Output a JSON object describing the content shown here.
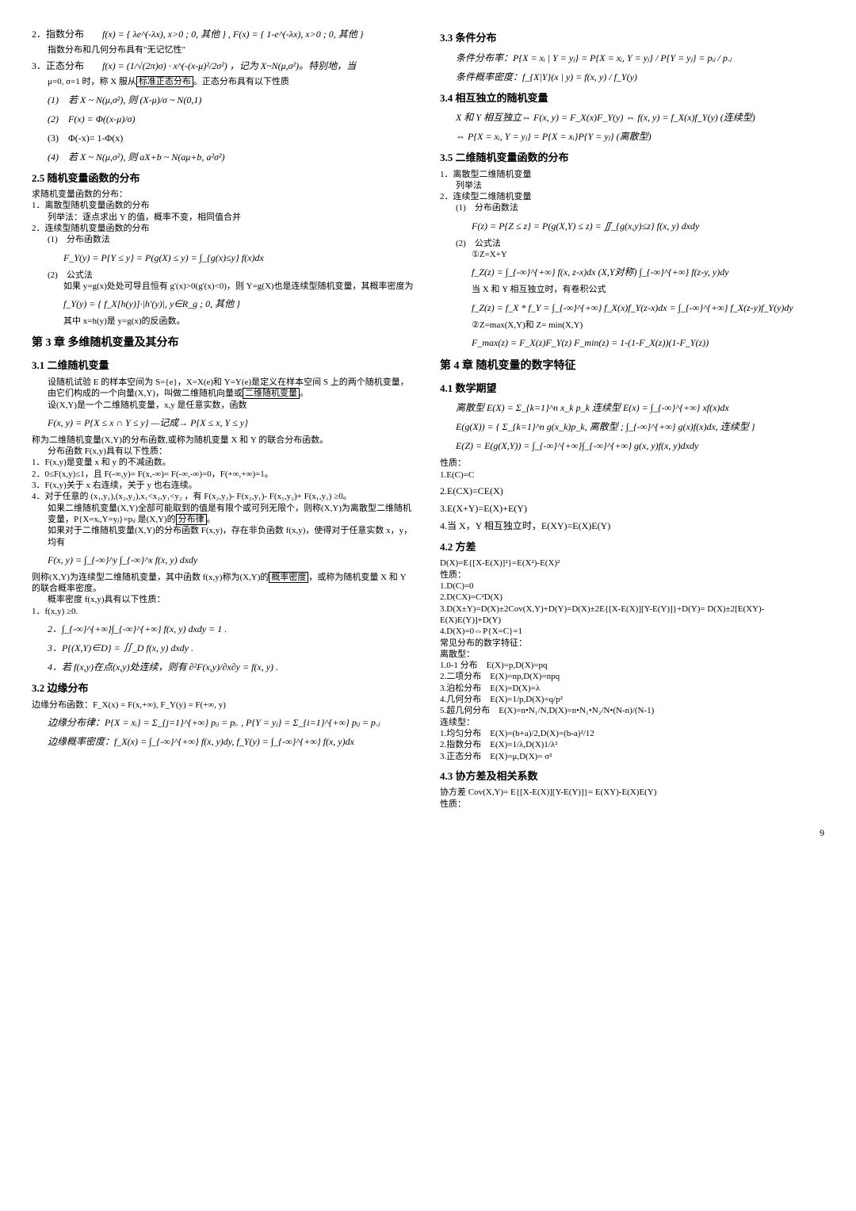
{
  "left": {
    "item2": {
      "label": "2．指数分布",
      "formula": "f(x) = { λe^(-λx), x>0 ; 0, 其他 } , F(x) = { 1-e^(-λx), x>0 ; 0, 其他 }",
      "note": "指数分布和几何分布具有\"无记忆性\""
    },
    "item3": {
      "label": "3．正态分布",
      "formula": "f(x) = (1/√(2π)σ) · x^(-(x-μ)²/2σ²) ，记为 X~N(μ,σ²)。特别地，当",
      "line2_pre": "μ=0, σ=1 时，称 X 服从",
      "line2_box": "标准正态分布",
      "line2_post": "。正态分布具有以下性质",
      "sub1": "(1)　若 X ~ N(μ,σ²), 则 (X-μ)/σ ~ N(0,1)",
      "sub2": "(2)　F(x) = Φ((x-μ)/σ)",
      "sub3": "(3)　Φ(-x)= 1-Φ(x)",
      "sub4": "(4)　若 X ~ N(μ,σ²), 则 aX+b ~ N(aμ+b, a²σ²)"
    },
    "sec25": {
      "title": "2.5 随机变量函数的分布",
      "intro": "求随机变量函数的分布：",
      "l1": "1．离散型随机变量函数的分布",
      "l1b": "列举法：逐点求出 Y 的值，概率不变，相同值合并",
      "l2": "2．连续型随机变量函数的分布",
      "l2a": "(1)　分布函数法",
      "l2a_f": "F_Y(y) = P{Y ≤ y} = P(g(X) ≤ y) = ∫_{g(x)≤y} f(x)dx",
      "l2b": "(2)　公式法",
      "l2b_txt": "如果 y=g(x)处处可导且恒有 g'(x)>0(g'(x)<0)，则 Y=g(X)也是连续型随机变量，其概率密度为",
      "l2b_f": "f_Y(y) = { f_X[h(y)]·|h'(y)|, y∈R_g ; 0, 其他 }",
      "l2b_end": "其中 x=h(y)是 y=g(x)的反函数。"
    },
    "ch3": {
      "title": "第 3 章  多维随机变量及其分布",
      "sec31": "3.1 二维随机变量",
      "p1_pre": "设随机试验 E 的样本空间为 S={e}，X=X(e)和 Y=Y(e)是定义在样本空间 S 上的两个随机变量，由它们构成的一个向量(X,Y)，叫做二维随机向量或",
      "p1_box": "二维随机变量",
      "p1_post": "。",
      "p2": "设(X,Y)是一个二维随机变量，x,y 是任意实数，函数",
      "f1": "F(x, y) = P{X ≤ x ∩ Y ≤ y} —记成→ P{X ≤ x, Y ≤ y}",
      "p3": "称为二维随机变量(X,Y)的分布函数,或称为随机变量 X 和 Y 的联合分布函数。",
      "p4": "分布函数 F(x,y)具有以下性质：",
      "li1": "1．F(x,y)是变量 x 和 y 的不减函数。",
      "li2": "2．0≤F(x,y)≤1，且 F(-∞,y)= F(x,-∞)= F(-∞,-∞)=0，F(+∞,+∞)=1。",
      "li3": "3．F(x,y)关于 x 右连续，关于 y 也右连续。",
      "li4": "4．对于任意的 (x₁,y₁),(x₂,y₂),x₁<x₂,y₁<y₂ ，有 F(x₂,y₂)- F(x₂,y₁)- F(x₁,y₂)+ F(x₁,y₁) ≥0。",
      "p5_pre": "如果二维随机变量(X,Y)全部可能取到的值是有限个或可列无限个，则称(X,Y)为离散型二维随机变量，P{X=xᵢ,Y=yⱼ}=pᵢⱼ 是(X,Y)的",
      "p5_box": "分布律",
      "p5_post": "。",
      "p6": "如果对于二维随机变量(X,Y)的分布函数 F(x,y)，存在非负函数 f(x,y)，使得对于任意实数 x，y，均有",
      "f2": "F(x, y) = ∫_{-∞}^y ∫_{-∞}^x f(x, y) dxdy",
      "p7_pre": "则称(X,Y)为连续型二维随机变量，其中函数 f(x,y)称为(X,Y)的",
      "p7_box": "概率密度",
      "p7_post": "，或称为随机变量 X 和 Y 的联合概率密度。",
      "p8": "概率密度 f(x,y)具有以下性质：",
      "pi1": "1．f(x,y) ≥0.",
      "pi2": "2．∫_{-∞}^{+∞}∫_{-∞}^{+∞} f(x, y) dxdy = 1 .",
      "pi3": "3．P{(X,Y)∈D} = ∬_D f(x, y) dxdy .",
      "pi4": "4．若 f(x,y)在点(x,y)处连续，则有 ∂²F(x,y)/∂x∂y = f(x, y) ."
    },
    "sec32": {
      "title": "3.2 边缘分布",
      "l1": "边缘分布函数：F_X(x) = F(x,+∞), F_Y(y) = F(+∞, y)",
      "l2": "边缘分布律：P{X = xᵢ} = Σ_{j=1}^{+∞} pᵢⱼ = pᵢ. , P{Y = yⱼ} = Σ_{i=1}^{+∞} pᵢⱼ = p.ⱼ",
      "l3": "边缘概率密度：f_X(x) = ∫_{-∞}^{+∞} f(x, y)dy, f_Y(y) = ∫_{-∞}^{+∞} f(x, y)dx"
    }
  },
  "right": {
    "sec33": {
      "title": "3.3 条件分布",
      "l1": "条件分布率：P{X = xᵢ | Y = yⱼ} = P{X = xᵢ, Y = yⱼ} / P{Y = yⱼ} = pᵢⱼ / p.ⱼ",
      "l2": "条件概率密度：f_{X|Y}(x | y) = f(x, y) / f_Y(y)"
    },
    "sec34": {
      "title": "3.4 相互独立的随机变量",
      "l1": "X 和 Y 相互独立⇔ F(x, y) = F_X(x)F_Y(y) ⇔ f(x, y) = f_X(x)f_Y(y) (连续型)",
      "l2": "⇔ P{X = xᵢ, Y = yⱼ} = P{X = xᵢ}P{Y = yⱼ} (离散型)"
    },
    "sec35": {
      "title": "3.5 二维随机变量函数的分布",
      "l1": "1．离散型二维随机变量",
      "l1a": "列举法",
      "l2": "2．连续型二维随机变量",
      "l2a": "(1)　分布函数法",
      "f1": "F(z) = P{Z ≤ z} = P(g(X,Y) ≤ z) = ∬_{g(x,y)≤z} f(x, y) dxdy",
      "l2b": "(2)　公式法",
      "l2b1": "①Z=X+Y",
      "f2": "f_Z(z) = ∫_{-∞}^{+∞} f(x, z-x)dx (X,Y对称) ∫_{-∞}^{+∞} f(z-y, y)dy",
      "l2b2": "当 X 和 Y 相互独立时，有卷积公式",
      "f3": "f_Z(z) = f_X * f_Y = ∫_{-∞}^{+∞} f_X(x)f_Y(z-x)dx = ∫_{-∞}^{+∞} f_X(z-y)f_Y(y)dy",
      "l2c": "②Z=max(X,Y)和 Z= min(X,Y)",
      "f4": "F_max(z) = F_X(z)F_Y(z)  F_min(z) = 1-(1-F_X(z))(1-F_Y(z))"
    },
    "ch4": {
      "title": "第 4 章  随机变量的数字特征",
      "sec41": "4.1 数学期望",
      "f1": "离散型 E(X) = Σ_{k=1}^n x_k p_k  连续型 E(x) = ∫_{-∞}^{+∞} xf(x)dx",
      "f2": "E(g(X)) = { Σ_{k=1}^n g(x_k)p_k, 离散型 ; ∫_{-∞}^{+∞} g(x)f(x)dx, 连续型 }",
      "f3": "E(Z) = E(g(X,Y)) = ∫_{-∞}^{+∞}∫_{-∞}^{+∞} g(x, y)f(x, y)dxdy",
      "props": "性质：",
      "p1": "1.E(C)=C",
      "p2": "2.E(CX)=CE(X)",
      "p3": "3.E(X+Y)=E(X)+E(Y)",
      "p4": "4.当 X，Y 相互独立时，E(XY)=E(X)E(Y)"
    },
    "sec42": {
      "title": "4.2 方差",
      "f1": "D(X)=E{[X-E(X)]²}=E(X²)-E(X)²",
      "props": "性质：",
      "p1": "1.D(C)=0",
      "p2": "2.D(CX)=C²D(X)",
      "p3": "3.D(X±Y)=D(X)±2Cov(X,Y)+D(Y)=D(X)±2E{[X-E(X)][Y-E(Y)]}+D(Y)= D(X)±2[E(XY)-E(X)E(Y)]+D(Y)",
      "p4": "4.D(X)=0⇔P{X=C}=1",
      "common": "常见分布的数字特征：",
      "d_label": "离散型：",
      "d1": "1.0-1 分布　E(X)=p,D(X)=pq",
      "d2": "2.二项分布　E(X)=np,D(X)=npq",
      "d3": "3.泊松分布　E(X)=D(X)=λ",
      "d4": "4.几何分布　E(X)=1/p,D(X)=q/p²",
      "d5": "5.超几何分布　E(X)=n•N₁/N,D(X)=n•N₁•N₂/N•(N-n)/(N-1)",
      "c_label": "连续型：",
      "c1": "1.均匀分布　E(X)=(b+a)/2,D(X)=(b-a)²/12",
      "c2": "2.指数分布　E(X)=1/λ,D(X)1/λ²",
      "c3": "3.正态分布　E(X)=μ,D(X)= σ²"
    },
    "sec43": {
      "title": "4.3 协方差及相关系数",
      "l1": "协方差 Cov(X,Y)= E{[X-E(X)][Y-E(Y)]}= E(XY)-E(X)E(Y)",
      "l2": "性质："
    }
  },
  "page_number": "9"
}
